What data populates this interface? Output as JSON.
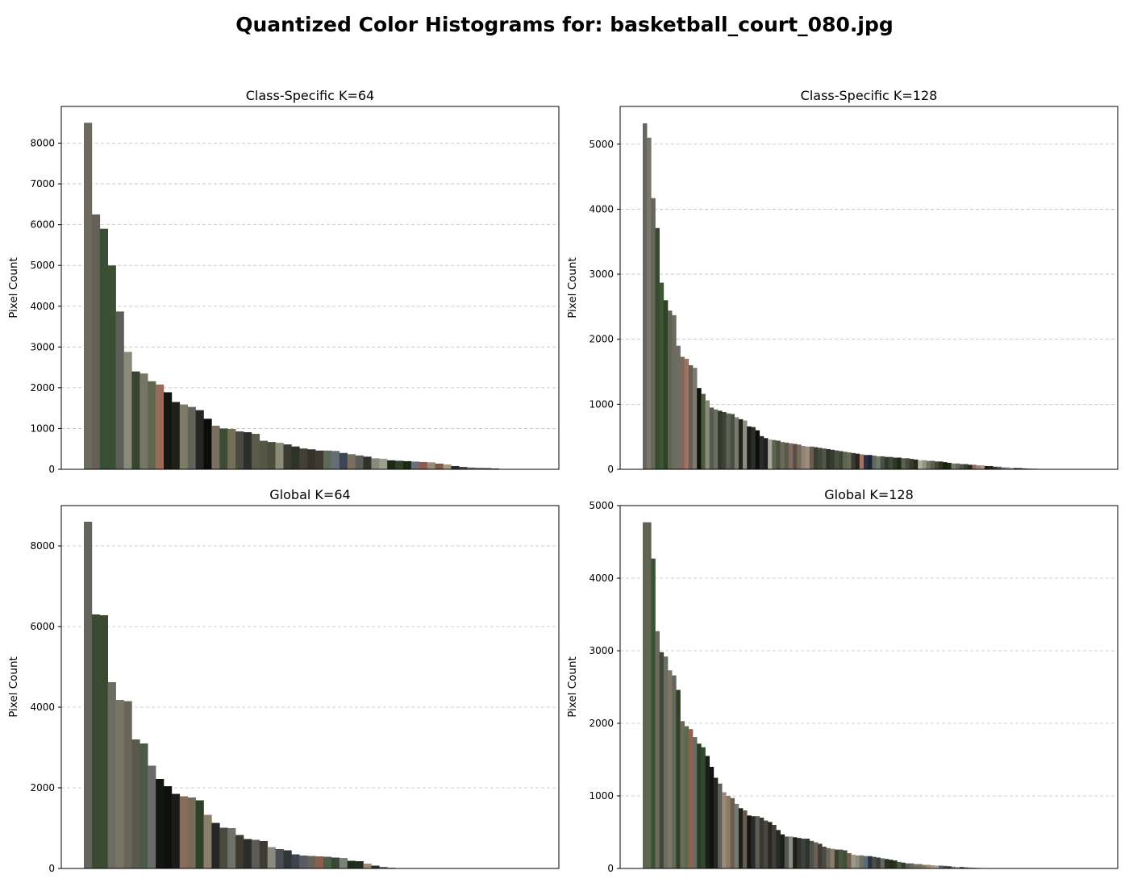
{
  "title": "Quantized Color Histograms for: basketball_court_080.jpg",
  "chart_data": [
    {
      "type": "bar",
      "title": "Class-Specific K=64",
      "ylabel": "Pixel Count",
      "ylim": [
        0,
        8900
      ],
      "yticks": [
        0,
        1000,
        2000,
        3000,
        4000,
        5000,
        6000,
        7000,
        8000
      ],
      "grid": "y-dashed",
      "values": [
        8500,
        6250,
        5900,
        5000,
        3870,
        2880,
        2400,
        2350,
        2160,
        2080,
        1890,
        1650,
        1590,
        1530,
        1450,
        1240,
        1070,
        1000,
        990,
        930,
        910,
        870,
        700,
        670,
        650,
        610,
        560,
        510,
        490,
        460,
        460,
        450,
        400,
        370,
        340,
        310,
        270,
        260,
        220,
        210,
        200,
        190,
        180,
        170,
        140,
        120,
        80,
        60,
        45,
        40,
        30,
        20
      ],
      "colors": [
        "#6d6a5f",
        "#665f58",
        "#3a4d35",
        "#3c4f33",
        "#5c5e58",
        "#8b8979",
        "#374530",
        "#767566",
        "#5e6850",
        "#9a6a59",
        "#141510",
        "#1f2119",
        "#7e7a68",
        "#62645c",
        "#242626",
        "#0b0c0a",
        "#7a6f5e",
        "#3d4b35",
        "#747057",
        "#4a4a40",
        "#2c2e2c",
        "#5c5a4a",
        "#535744",
        "#4c4e3c",
        "#8c8a78",
        "#3a3a30",
        "#2d3328",
        "#443e36",
        "#353328",
        "#3e3a32",
        "#5e6a5a",
        "#646e70",
        "#3c4458",
        "#7a6e5c",
        "#5a5c58",
        "#303230",
        "#8a8a7c",
        "#a09e90",
        "#1d2818",
        "#2f3f28",
        "#1a2a14",
        "#6a7078",
        "#8e5a4c",
        "#9a8a74",
        "#7a5a48",
        "#a89a80",
        "#2a2c3a",
        "#504840",
        "#6a6a70",
        "#8a7a6a",
        "#4a4a4a",
        "#3a3a3a"
      ]
    },
    {
      "type": "bar",
      "title": "Class-Specific K=128",
      "ylabel": "Pixel Count",
      "ylim": [
        0,
        5580
      ],
      "yticks": [
        0,
        1000,
        2000,
        3000,
        4000,
        5000
      ],
      "grid": "y-dashed",
      "values": [
        5320,
        5100,
        4170,
        3710,
        2870,
        2600,
        2440,
        2370,
        1900,
        1730,
        1700,
        1600,
        1560,
        1250,
        1160,
        1060,
        950,
        920,
        900,
        880,
        860,
        850,
        800,
        770,
        750,
        660,
        650,
        600,
        510,
        480,
        460,
        450,
        440,
        420,
        410,
        400,
        390,
        380,
        360,
        350,
        350,
        340,
        330,
        320,
        310,
        300,
        290,
        280,
        270,
        260,
        250,
        240,
        230,
        220,
        220,
        210,
        200,
        200,
        190,
        190,
        180,
        180,
        170,
        170,
        160,
        150,
        140,
        140,
        130,
        130,
        120,
        120,
        110,
        100,
        90,
        90,
        80,
        80,
        70,
        70,
        60,
        60,
        50,
        50,
        40,
        40,
        30,
        30,
        25,
        20,
        20,
        15,
        12,
        10,
        8,
        6,
        5,
        4,
        3,
        2,
        2,
        1,
        1
      ],
      "colors": [
        "#666560",
        "#777669",
        "#64655b",
        "#374a2e",
        "#3c5534",
        "#2f4327",
        "#5f6351",
        "#6c6b60",
        "#6c6d66",
        "#7a6a5a",
        "#a07060",
        "#6a5c55",
        "#7a7a70",
        "#101208",
        "#4e5a42",
        "#8a8a7a",
        "#545a4c",
        "#6c6c64",
        "#33362c",
        "#3e4338",
        "#5c6254",
        "#4a4e40",
        "#787a6c",
        "#23261e",
        "#8c8e80",
        "#1a1c16",
        "#2c2e2a",
        "#0c0e0a",
        "#2a2c2c",
        "#1e2020",
        "#a8a898",
        "#5c6450",
        "#4c5040",
        "#6a6a58",
        "#585a48",
        "#7e6a60",
        "#5a4e48",
        "#746a5a",
        "#8c8474",
        "#9e8c7c",
        "#6a5c50",
        "#3a3e30",
        "#404a38",
        "#505648",
        "#2c3428",
        "#383c30",
        "#4a5040",
        "#3c4432",
        "#5a6450",
        "#686a58",
        "#3a3a32",
        "#2a2420",
        "#a07262",
        "#283044",
        "#1c2234",
        "#606a5c",
        "#707a6c",
        "#485042",
        "#32382c",
        "#3e4a38",
        "#2e3628",
        "#202818",
        "#5c6050",
        "#464c3c",
        "#343a2c",
        "#242a1e",
        "#b0b09a",
        "#909686",
        "#6e7464",
        "#585e4e",
        "#424838",
        "#2e3424",
        "#1a2014",
        "#1e2a18",
        "#7a7c6a",
        "#64665a",
        "#4e5048",
        "#3a3c34",
        "#26281e",
        "#8a6a5c",
        "#a08070",
        "#b09484",
        "#1e2016",
        "#242c20",
        "#3e403a",
        "#5a5c56",
        "#767870",
        "#92948a",
        "#aeb0a4",
        "#2e2a26",
        "#443e38",
        "#5a524a",
        "#70665c",
        "#867a6e",
        "#3a4c30",
        "#2a3c20",
        "#1a2c10",
        "#50604a",
        "#68786a",
        "#80907c",
        "#98a88e",
        "#b0c0a0",
        "#30343c"
      ]
    },
    {
      "type": "bar",
      "title": "Global K=64",
      "ylabel": "Pixel Count",
      "ylim": [
        0,
        9000
      ],
      "yticks": [
        0,
        2000,
        4000,
        6000,
        8000
      ],
      "grid": "y-dashed",
      "values": [
        8600,
        6300,
        6280,
        4620,
        4180,
        4150,
        3200,
        3100,
        2550,
        2220,
        2040,
        1850,
        1790,
        1760,
        1690,
        1330,
        1130,
        1010,
        1000,
        830,
        730,
        710,
        680,
        530,
        480,
        450,
        350,
        320,
        310,
        300,
        290,
        270,
        260,
        190,
        180,
        120,
        70,
        40,
        20,
        10,
        5,
        3
      ],
      "colors": [
        "#64645c",
        "#3b4a32",
        "#394a30",
        "#6c6c64",
        "#777565",
        "#6a6558",
        "#5a594c",
        "#4c5a48",
        "#6a6a68",
        "#121410",
        "#0e100e",
        "#1a1c1a",
        "#8a6a58",
        "#786a5a",
        "#2f4028",
        "#8a806a",
        "#262626",
        "#4c4a40",
        "#6e7268",
        "#3e3a30",
        "#2c2c28",
        "#5a5a58",
        "#3e3b32",
        "#8a8a80",
        "#4a4e50",
        "#303434",
        "#3c4450",
        "#585c62",
        "#6a625a",
        "#8a5e4c",
        "#4c5e48",
        "#3a4636",
        "#7e807a",
        "#1e2a1c",
        "#202e20",
        "#a08a70",
        "#2a2c38",
        "#606a70",
        "#8a7a6a",
        "#4a4a4a",
        "#9a9a90",
        "#3a3a3a"
      ]
    },
    {
      "type": "bar",
      "title": "Global K=128",
      "ylabel": "Pixel Count",
      "ylim": [
        0,
        5000
      ],
      "yticks": [
        0,
        1000,
        2000,
        3000,
        4000,
        5000
      ],
      "grid": "y-dashed",
      "values": [
        4770,
        4770,
        4270,
        3270,
        2980,
        2920,
        2730,
        2660,
        2460,
        2030,
        1960,
        1920,
        1810,
        1720,
        1670,
        1550,
        1400,
        1250,
        1170,
        1050,
        1000,
        970,
        890,
        830,
        800,
        730,
        720,
        720,
        700,
        660,
        640,
        600,
        530,
        470,
        440,
        440,
        430,
        420,
        410,
        410,
        380,
        360,
        340,
        300,
        280,
        270,
        260,
        260,
        250,
        210,
        190,
        180,
        180,
        170,
        170,
        160,
        150,
        140,
        130,
        120,
        110,
        90,
        80,
        70,
        70,
        60,
        60,
        50,
        50,
        45,
        40,
        40,
        35,
        30,
        25,
        20,
        20,
        15,
        12,
        10,
        8,
        6,
        5,
        4,
        3,
        3,
        2,
        2,
        1,
        1
      ],
      "colors": [
        "#5f6552",
        "#5f6450",
        "#3b5232",
        "#6c6a5e",
        "#3e4836",
        "#6c6c66",
        "#7a7866",
        "#66665c",
        "#2f4226",
        "#6e6a58",
        "#5a6a50",
        "#8a6450",
        "#6a6a60",
        "#2c3c24",
        "#2f4a2e",
        "#1c1e18",
        "#121410",
        "#252624",
        "#5e5e5a",
        "#9a8a78",
        "#8a7a64",
        "#6a5e50",
        "#787872",
        "#1e201c",
        "#6a5a4a",
        "#141614",
        "#2c2a28",
        "#5c5c54",
        "#3a3630",
        "#484640",
        "#2a2824",
        "#3e3e3a",
        "#262a26",
        "#1a1e1a",
        "#52584c",
        "#8c8c84",
        "#1c2018",
        "#34342e",
        "#3e423a",
        "#2e322e",
        "#4e504a",
        "#6c5e52",
        "#3c3e36",
        "#4e4a42",
        "#6a685e",
        "#8a7c68",
        "#3a4030",
        "#4a5640",
        "#3c5238",
        "#745e4e",
        "#a09886",
        "#8a8a80",
        "#707064",
        "#566c78",
        "#2a3440",
        "#4a4e4a",
        "#383e38",
        "#646660",
        "#2c3020",
        "#203016",
        "#263620",
        "#485a40",
        "#383a30",
        "#5a5c50",
        "#606860",
        "#707068",
        "#7a7060",
        "#86766a",
        "#9a8878",
        "#aa9a88",
        "#a8a498",
        "#60646a",
        "#4a4e56",
        "#343840",
        "#7a7e84",
        "#9a9ea4",
        "#2e3a2a",
        "#445240",
        "#5a6a56",
        "#70826c",
        "#869a82",
        "#9cb298",
        "#262a1a",
        "#3c402c",
        "#52563e",
        "#686c50",
        "#7e8262",
        "#949874",
        "#aaae86",
        "#c0c498"
      ]
    }
  ]
}
